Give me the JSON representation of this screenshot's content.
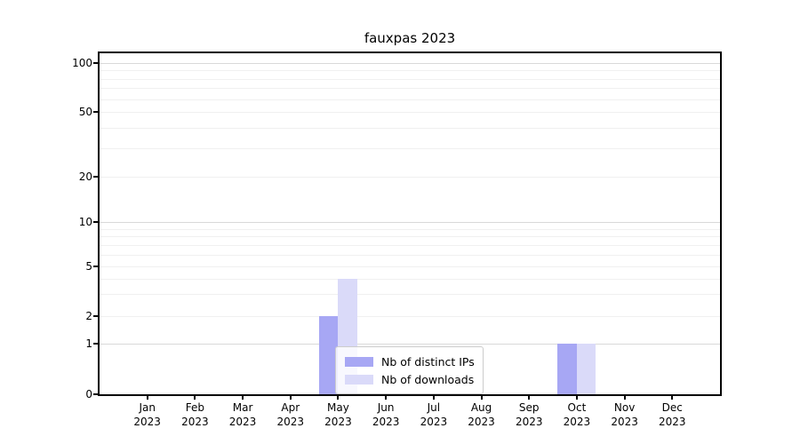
{
  "chart_data": {
    "type": "bar",
    "title": "fauxpas 2023",
    "categories": [
      {
        "month": "Jan",
        "year": "2023"
      },
      {
        "month": "Feb",
        "year": "2023"
      },
      {
        "month": "Mar",
        "year": "2023"
      },
      {
        "month": "Apr",
        "year": "2023"
      },
      {
        "month": "May",
        "year": "2023"
      },
      {
        "month": "Jun",
        "year": "2023"
      },
      {
        "month": "Jul",
        "year": "2023"
      },
      {
        "month": "Aug",
        "year": "2023"
      },
      {
        "month": "Sep",
        "year": "2023"
      },
      {
        "month": "Oct",
        "year": "2023"
      },
      {
        "month": "Nov",
        "year": "2023"
      },
      {
        "month": "Dec",
        "year": "2023"
      }
    ],
    "series": [
      {
        "name": "Nb of distinct IPs",
        "color": "#a7a7f4",
        "values": [
          0,
          0,
          0,
          0,
          2,
          0,
          0,
          0,
          0,
          1,
          0,
          0
        ]
      },
      {
        "name": "Nb of downloads",
        "color": "#dadaf9",
        "values": [
          0,
          0,
          0,
          0,
          4,
          0,
          0,
          0,
          0,
          1,
          0,
          0
        ]
      }
    ],
    "xlabel": "",
    "ylabel": "",
    "yscale": "log-above-1-with-zero-baseline",
    "ylim": [
      0,
      115
    ],
    "yticks": [
      0,
      1,
      2,
      5,
      10,
      20,
      50,
      100
    ],
    "grid_major_at": [
      1,
      10,
      100
    ],
    "grid_minor_at": [
      2,
      3,
      4,
      5,
      6,
      7,
      8,
      9,
      20,
      30,
      40,
      50,
      60,
      70,
      80,
      90
    ],
    "grid": "horizontal",
    "legend_position": "inside-bottom-center"
  },
  "colors": {
    "background": "#ffffff",
    "axis": "#000000",
    "grid_major": "#d9d9d9",
    "grid_minor": "#f0f0f0",
    "legend_border": "#cccccc",
    "distinct_ips_bar": "#a7a7f4",
    "downloads_bar": "#dadaf9"
  }
}
